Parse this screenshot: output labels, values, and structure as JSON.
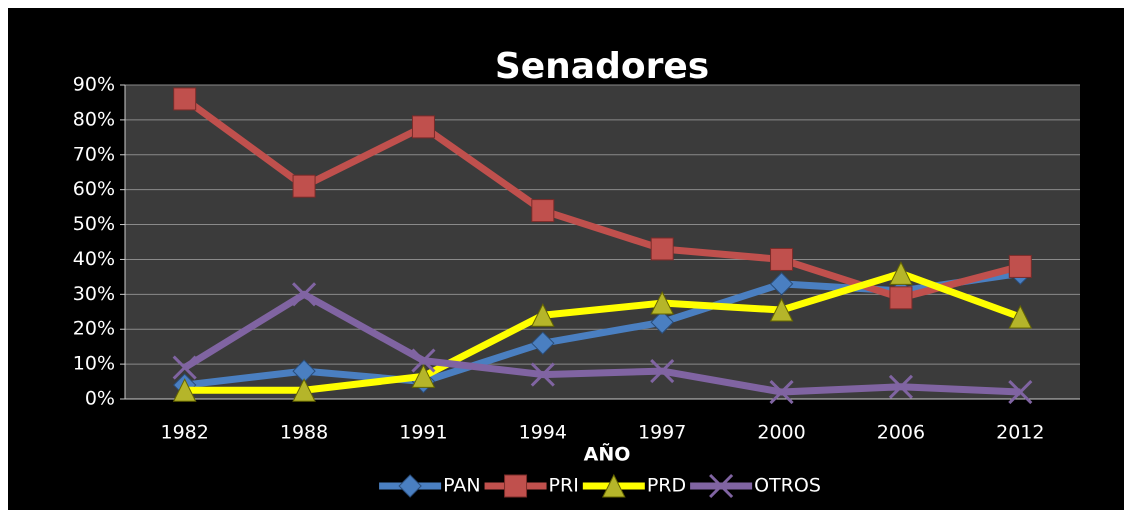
{
  "chart_data": {
    "type": "line",
    "title": "Senadores",
    "x_label": "AÑO",
    "categories": [
      "1982",
      "1988",
      "1991",
      "1994",
      "1997",
      "2000",
      "2006",
      "2012"
    ],
    "series": [
      {
        "name": "PAN",
        "color": "#4a7fc1",
        "marker": "diamond",
        "values": [
          4,
          8,
          5,
          16,
          22,
          33,
          31,
          36
        ]
      },
      {
        "name": "PRI",
        "color": "#c0504d",
        "marker": "square",
        "values": [
          86,
          61,
          78,
          54,
          43,
          40,
          29,
          38
        ]
      },
      {
        "name": "PRD",
        "color": "#ffff00",
        "marker": "triangle",
        "values": [
          2.5,
          2.5,
          6.5,
          24,
          27.5,
          25.5,
          36,
          23.5
        ]
      },
      {
        "name": "OTROS",
        "color": "#8064a2",
        "marker": "x",
        "values": [
          9,
          30,
          11,
          7,
          8,
          2,
          3.5,
          2
        ]
      }
    ],
    "ylim": [
      0,
      90
    ],
    "yticks": [
      {
        "value": 0,
        "label": "0%"
      },
      {
        "value": 10,
        "label": "10%"
      },
      {
        "value": 20,
        "label": "20%"
      },
      {
        "value": 30,
        "label": "30%"
      },
      {
        "value": 40,
        "label": "40%"
      },
      {
        "value": 50,
        "label": "50%"
      },
      {
        "value": 60,
        "label": "60%"
      },
      {
        "value": 70,
        "label": "70%"
      },
      {
        "value": 80,
        "label": "80%"
      },
      {
        "value": 90,
        "label": "90%"
      }
    ],
    "grid": true,
    "legend": "bottom"
  }
}
